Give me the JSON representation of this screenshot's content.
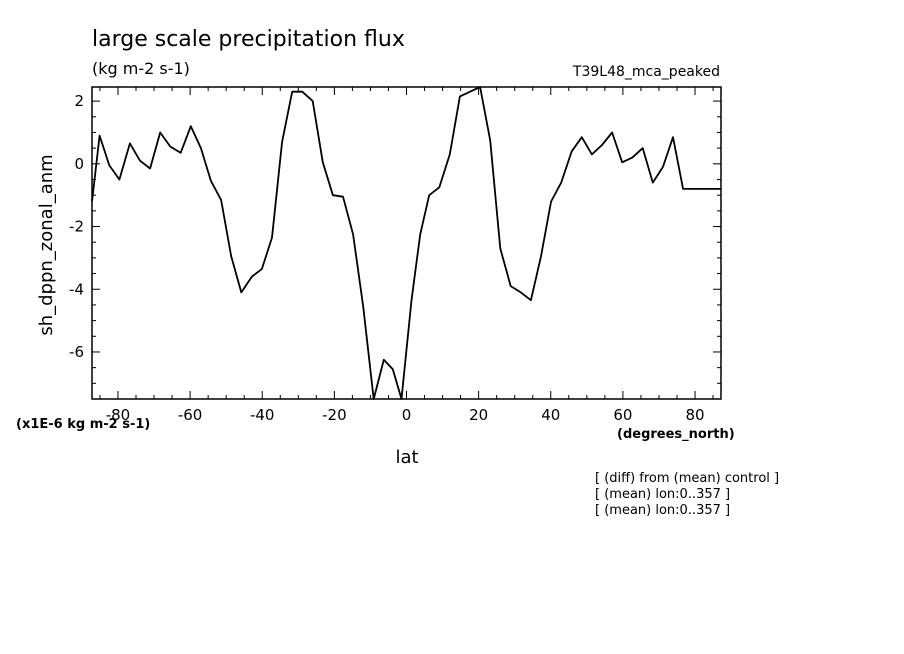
{
  "chart_data": {
    "type": "line",
    "title": "large scale precipitation flux",
    "units": "(kg m-2 s-1)",
    "run_label": "T39L48_mca_peaked",
    "xlabel": "lat",
    "x_units": "(degrees_north)",
    "ylabel": "sh_dppn_zonal_anm",
    "y_scale_note": "(x1E-6 kg m-2 s-1)",
    "xlim": [
      -87.2,
      87.2
    ],
    "ylim": [
      -7.5,
      2.45
    ],
    "x_ticks": [
      -80,
      -60,
      -40,
      -20,
      0,
      20,
      40,
      60,
      80
    ],
    "x_tick_labels": [
      "-80",
      "-60",
      "-40",
      "-20",
      "0",
      "20",
      "40",
      "60",
      "80"
    ],
    "y_ticks": [
      -6,
      -4,
      -2,
      0,
      2
    ],
    "y_tick_labels": [
      "-6",
      "-4",
      "-2",
      "0",
      "2"
    ],
    "grid": false,
    "notes": [
      "[ (diff) from (mean) control ]",
      "[ (mean) lon:0..357 ]",
      "[ (mean) lon:0..357 ]"
    ],
    "series": [
      {
        "color": "#000000",
        "x": [
          -87.2,
          -85.1,
          -82.4,
          -79.6,
          -76.7,
          -73.9,
          -71.1,
          -68.3,
          -65.5,
          -62.6,
          -59.8,
          -57.0,
          -54.2,
          -51.4,
          -48.6,
          -45.8,
          -42.9,
          -40.1,
          -37.3,
          -34.5,
          -31.7,
          -28.9,
          -26.0,
          -23.2,
          -20.4,
          -17.6,
          -14.8,
          -12.0,
          -9.1,
          -6.3,
          -3.8,
          -1.4,
          1.4,
          3.8,
          6.3,
          9.1,
          12.0,
          14.8,
          17.6,
          20.4,
          23.2,
          26.0,
          28.9,
          31.7,
          34.5,
          37.3,
          40.1,
          42.9,
          45.8,
          48.6,
          51.4,
          54.2,
          57.0,
          59.8,
          62.6,
          65.5,
          68.3,
          71.1,
          73.9,
          76.7,
          79.6,
          82.4,
          85.1,
          87.2
        ],
        "values": [
          -1.2,
          0.9,
          -0.05,
          -0.5,
          0.65,
          0.1,
          -0.15,
          1.0,
          0.55,
          0.35,
          1.2,
          0.5,
          -0.55,
          -1.15,
          -2.95,
          -4.1,
          -3.6,
          -3.35,
          -2.35,
          0.7,
          2.3,
          2.3,
          2.0,
          0.05,
          -1.0,
          -1.05,
          -2.25,
          -4.55,
          -7.5,
          -6.25,
          -6.55,
          -7.5,
          -4.35,
          -2.25,
          -1.0,
          -0.75,
          0.3,
          2.15,
          2.3,
          2.45,
          0.75,
          -2.7,
          -3.9,
          -4.1,
          -4.35,
          -2.95,
          -1.2,
          -0.6,
          0.4,
          0.85,
          0.3,
          0.6,
          1.0,
          0.05,
          0.2,
          0.5,
          -0.6,
          -0.1,
          0.85,
          -0.8,
          -0.8,
          -0.8,
          -0.8,
          -0.8
        ]
      }
    ]
  }
}
